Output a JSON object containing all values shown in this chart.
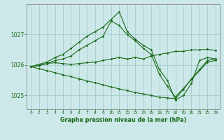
{
  "title": "Graphe pression niveau de la mer (hPa)",
  "bg_color": "#cce8e8",
  "line_color": "#1a6b1a",
  "grid_color": "#9ec8c8",
  "axis_color": "#888888",
  "xlim": [
    -0.5,
    23.5
  ],
  "ylim": [
    1024.55,
    1028.0
  ],
  "yticks": [
    1025,
    1026,
    1027
  ],
  "xticks": [
    0,
    1,
    2,
    3,
    4,
    5,
    6,
    7,
    8,
    9,
    10,
    11,
    12,
    13,
    14,
    15,
    16,
    17,
    18,
    19,
    20,
    21,
    22,
    23
  ],
  "series": [
    {
      "x": [
        0,
        1,
        2,
        3,
        4,
        5,
        6,
        7,
        8,
        9,
        10,
        11,
        12,
        13,
        14,
        15,
        16,
        17,
        18,
        19,
        20,
        21,
        22,
        23
      ],
      "y": [
        1025.95,
        1025.98,
        1026.05,
        1026.08,
        1026.05,
        1026.02,
        1026.05,
        1026.08,
        1026.1,
        1026.15,
        1026.2,
        1026.25,
        1026.2,
        1026.25,
        1026.2,
        1026.3,
        1026.35,
        1026.4,
        1026.45,
        1026.45,
        1026.5,
        1026.5,
        1026.52,
        1026.48
      ]
    },
    {
      "x": [
        0,
        1,
        2,
        3,
        4,
        5,
        6,
        7,
        8,
        9,
        10,
        11,
        12,
        13,
        14,
        15,
        16,
        17,
        18,
        19,
        20,
        21,
        22,
        23
      ],
      "y": [
        1025.95,
        1025.88,
        1025.82,
        1025.75,
        1025.68,
        1025.62,
        1025.55,
        1025.48,
        1025.42,
        1025.35,
        1025.28,
        1025.22,
        1025.16,
        1025.1,
        1025.05,
        1025.0,
        1024.95,
        1024.92,
        1024.9,
        1025.2,
        1025.55,
        1025.85,
        1026.15,
        1026.2
      ]
    },
    {
      "x": [
        0,
        2,
        3,
        4,
        5,
        6,
        7,
        8,
        9,
        10,
        11,
        12,
        13,
        14,
        15,
        16,
        17,
        18,
        19,
        20,
        21,
        22,
        23
      ],
      "y": [
        1025.95,
        1026.1,
        1026.25,
        1026.35,
        1026.55,
        1026.75,
        1026.95,
        1027.1,
        1027.25,
        1027.5,
        1027.75,
        1027.1,
        1026.85,
        1026.65,
        1026.5,
        1025.85,
        1025.5,
        1024.85,
        1025.0,
        1025.4,
        1026.15,
        1026.25,
        1026.2
      ]
    },
    {
      "x": [
        0,
        2,
        3,
        4,
        5,
        6,
        7,
        8,
        9,
        10,
        11,
        12,
        13,
        14,
        15,
        16,
        17,
        18,
        22,
        23
      ],
      "y": [
        1025.95,
        1026.05,
        1026.15,
        1026.2,
        1026.3,
        1026.5,
        1026.65,
        1026.8,
        1026.95,
        1027.45,
        1027.3,
        1027.0,
        1026.8,
        1026.55,
        1026.35,
        1025.7,
        1025.3,
        1024.95,
        1026.1,
        1026.15
      ]
    }
  ]
}
